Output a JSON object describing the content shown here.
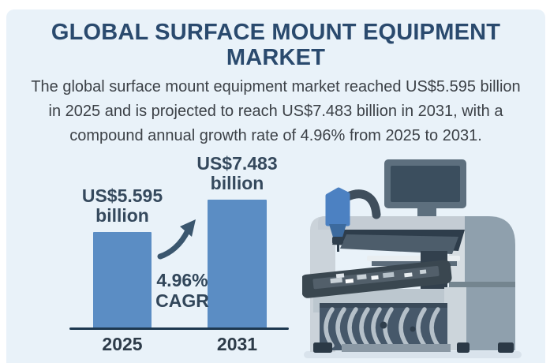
{
  "infographic": {
    "title": "GLOBAL SURFACE MOUNT EQUIPMENT MARKET",
    "description": "The global surface mount equipment market reached US$5.595 billion in 2025 and is projected to reach US$7.483 billion in 2031, with a compound annual growth rate of 4.96% from 2025 to 2031."
  },
  "chart_data": {
    "type": "bar",
    "categories": [
      "2025",
      "2031"
    ],
    "values": [
      5.595,
      7.483
    ],
    "unit": "US$ billion",
    "value_labels": [
      {
        "value": "US$5.595",
        "unit": "billion"
      },
      {
        "value": "US$7.483",
        "unit": "billion"
      }
    ],
    "cagr": {
      "rate": "4.96%",
      "label": "CAGR"
    },
    "title": "",
    "xlabel": "",
    "ylabel": "",
    "ylim": [
      0,
      7.5
    ],
    "grid": false,
    "legend": false,
    "bar_color": "#5b8dc4",
    "axis_color": "#1d3850"
  },
  "illustration": {
    "name": "surface-mount-pick-and-place-machine"
  },
  "colors": {
    "panel_background": "#e9f2f9",
    "title_color": "#2a4a6e",
    "body_text_color": "#3c4147",
    "bar_color": "#5b8dc4",
    "axis_color": "#1d3850",
    "arrow_color": "#3a566e",
    "nozzle_blue": "#4c81c2"
  }
}
